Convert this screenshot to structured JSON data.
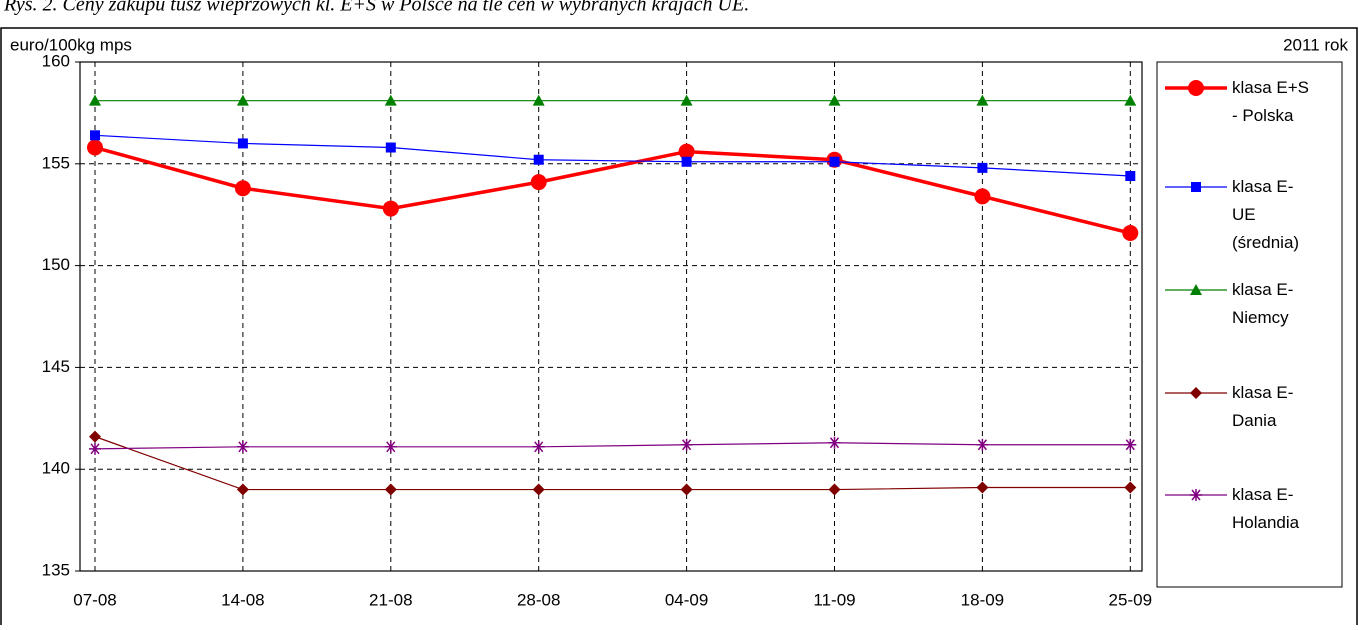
{
  "chart_data": {
    "type": "line",
    "title": "Rys. 2. Ceny zakupu tusz wieprzowych kl. E+S w Polsce na tle cen w wybranych krajach UE.",
    "y_label": "euro/100kg mps",
    "annotation": "2011 rok",
    "categories": [
      "07-08",
      "14-08",
      "21-08",
      "28-08",
      "04-09",
      "11-09",
      "18-09",
      "25-09"
    ],
    "series": [
      {
        "name": "klasa E+S - Polska",
        "color": "#ff0000",
        "marker": "circle",
        "values": [
          155.8,
          153.8,
          152.8,
          154.1,
          155.6,
          155.2,
          153.4,
          151.6
        ]
      },
      {
        "name": "klasa E- UE (średnia)",
        "color": "#0000ff",
        "marker": "square",
        "values": [
          156.4,
          156.0,
          155.8,
          155.2,
          155.1,
          155.1,
          154.8,
          154.4
        ]
      },
      {
        "name": "klasa E- Niemcy",
        "color": "#008000",
        "marker": "triangle",
        "values": [
          158.1,
          158.1,
          158.1,
          158.1,
          158.1,
          158.1,
          158.1,
          158.1
        ]
      },
      {
        "name": "klasa E- Dania",
        "color": "#800000",
        "marker": "diamond",
        "values": [
          141.6,
          139.0,
          139.0,
          139.0,
          139.0,
          139.0,
          139.1,
          139.1
        ]
      },
      {
        "name": "klasa E- Holandia",
        "color": "#800080",
        "marker": "star",
        "values": [
          141.0,
          141.1,
          141.1,
          141.1,
          141.2,
          141.3,
          141.2,
          141.2
        ]
      }
    ],
    "ylim": [
      135,
      160
    ],
    "yticks": [
      135,
      140,
      145,
      150,
      155,
      160
    ],
    "grid": true
  }
}
